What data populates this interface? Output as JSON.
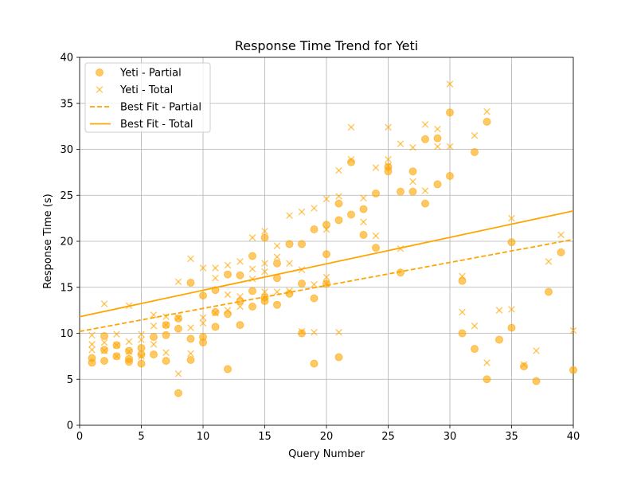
{
  "chart_data": {
    "type": "scatter",
    "title": "Response Time Trend for Yeti",
    "xlabel": "Query Number",
    "ylabel": "Response Time (s)",
    "xlim": [
      0,
      40
    ],
    "ylim": [
      0,
      40
    ],
    "xticks": [
      0,
      5,
      10,
      15,
      20,
      25,
      30,
      35,
      40
    ],
    "yticks": [
      0,
      5,
      10,
      15,
      20,
      25,
      30,
      35,
      40
    ],
    "grid": true,
    "legend_position": "top-left",
    "color": "#ffa500",
    "series": [
      {
        "name": "Yeti - Partial",
        "kind": "scatter",
        "marker": "circle",
        "points": [
          [
            1,
            6.8
          ],
          [
            1,
            7.3
          ],
          [
            2,
            7.0
          ],
          [
            2,
            8.2
          ],
          [
            2,
            9.7
          ],
          [
            3,
            7.5
          ],
          [
            3,
            8.7
          ],
          [
            4,
            6.9
          ],
          [
            4,
            7.2
          ],
          [
            4,
            8.1
          ],
          [
            5,
            6.7
          ],
          [
            5,
            7.7
          ],
          [
            5,
            8.4
          ],
          [
            6,
            7.7
          ],
          [
            6,
            9.6
          ],
          [
            7,
            7.0
          ],
          [
            7,
            9.8
          ],
          [
            7,
            10.9
          ],
          [
            8,
            3.5
          ],
          [
            8,
            10.5
          ],
          [
            8,
            11.6
          ],
          [
            9,
            7.1
          ],
          [
            9,
            9.4
          ],
          [
            9,
            15.5
          ],
          [
            10,
            9.0
          ],
          [
            10,
            9.6
          ],
          [
            10,
            14.1
          ],
          [
            11,
            10.7
          ],
          [
            11,
            12.3
          ],
          [
            11,
            14.7
          ],
          [
            12,
            6.1
          ],
          [
            12,
            12.1
          ],
          [
            12,
            16.4
          ],
          [
            13,
            10.9
          ],
          [
            13,
            13.5
          ],
          [
            13,
            16.3
          ],
          [
            14,
            12.9
          ],
          [
            14,
            14.6
          ],
          [
            14,
            18.4
          ],
          [
            15,
            13.5
          ],
          [
            15,
            13.9
          ],
          [
            15,
            20.4
          ],
          [
            16,
            13.1
          ],
          [
            16,
            16.0
          ],
          [
            16,
            17.6
          ],
          [
            17,
            14.3
          ],
          [
            17,
            19.7
          ],
          [
            18,
            10.0
          ],
          [
            18,
            15.4
          ],
          [
            18,
            19.7
          ],
          [
            19,
            6.7
          ],
          [
            19,
            13.8
          ],
          [
            19,
            21.3
          ],
          [
            20,
            15.4
          ],
          [
            20,
            18.6
          ],
          [
            20,
            21.8
          ],
          [
            21,
            7.4
          ],
          [
            21,
            22.3
          ],
          [
            21,
            24.1
          ],
          [
            22,
            22.9
          ],
          [
            22,
            28.6
          ],
          [
            23,
            20.7
          ],
          [
            23,
            23.5
          ],
          [
            24,
            19.3
          ],
          [
            24,
            25.2
          ],
          [
            25,
            27.6
          ],
          [
            25,
            28.1
          ],
          [
            26,
            16.6
          ],
          [
            26,
            25.4
          ],
          [
            27,
            25.4
          ],
          [
            27,
            27.6
          ],
          [
            28,
            24.1
          ],
          [
            28,
            31.1
          ],
          [
            29,
            26.2
          ],
          [
            29,
            31.2
          ],
          [
            30,
            27.1
          ],
          [
            30,
            34.0
          ],
          [
            31,
            10.0
          ],
          [
            31,
            15.7
          ],
          [
            32,
            8.3
          ],
          [
            32,
            29.7
          ],
          [
            33,
            5.0
          ],
          [
            33,
            33.0
          ],
          [
            34,
            9.3
          ],
          [
            35,
            10.6
          ],
          [
            35,
            19.9
          ],
          [
            36,
            6.4
          ],
          [
            37,
            4.8
          ],
          [
            38,
            14.5
          ],
          [
            39,
            18.8
          ],
          [
            40,
            6.0
          ]
        ]
      },
      {
        "name": "Yeti - Total",
        "kind": "scatter",
        "marker": "x",
        "points": [
          [
            1,
            8.2
          ],
          [
            1,
            8.8
          ],
          [
            1,
            9.8
          ],
          [
            2,
            8.1
          ],
          [
            2,
            9.0
          ],
          [
            2,
            13.2
          ],
          [
            3,
            7.5
          ],
          [
            3,
            8.7
          ],
          [
            3,
            9.9
          ],
          [
            4,
            8.0
          ],
          [
            4,
            9.1
          ],
          [
            4,
            13.0
          ],
          [
            5,
            7.5
          ],
          [
            5,
            9.3
          ],
          [
            5,
            9.9
          ],
          [
            6,
            8.8
          ],
          [
            6,
            10.8
          ],
          [
            6,
            12.0
          ],
          [
            7,
            7.9
          ],
          [
            7,
            10.9
          ],
          [
            7,
            11.8
          ],
          [
            8,
            5.6
          ],
          [
            8,
            11.7
          ],
          [
            8,
            15.6
          ],
          [
            9,
            7.8
          ],
          [
            9,
            10.6
          ],
          [
            9,
            18.1
          ],
          [
            10,
            11.1
          ],
          [
            10,
            11.7
          ],
          [
            10,
            17.1
          ],
          [
            11,
            12.2
          ],
          [
            11,
            16.0
          ],
          [
            11,
            17.1
          ],
          [
            12,
            12.5
          ],
          [
            12,
            14.2
          ],
          [
            12,
            17.4
          ],
          [
            13,
            12.9
          ],
          [
            13,
            14.0
          ],
          [
            13,
            17.8
          ],
          [
            14,
            15.9
          ],
          [
            14,
            17.0
          ],
          [
            14,
            20.4
          ],
          [
            15,
            14.5
          ],
          [
            15,
            16.7
          ],
          [
            15,
            17.6
          ],
          [
            15,
            21.1
          ],
          [
            16,
            14.5
          ],
          [
            16,
            18.3
          ],
          [
            16,
            19.5
          ],
          [
            17,
            14.6
          ],
          [
            17,
            17.6
          ],
          [
            17,
            22.8
          ],
          [
            18,
            10.2
          ],
          [
            18,
            16.9
          ],
          [
            18,
            23.2
          ],
          [
            19,
            10.1
          ],
          [
            19,
            15.3
          ],
          [
            19,
            23.6
          ],
          [
            20,
            15.4
          ],
          [
            20,
            16.1
          ],
          [
            20,
            21.3
          ],
          [
            20,
            24.6
          ],
          [
            21,
            10.1
          ],
          [
            21,
            24.9
          ],
          [
            21,
            27.7
          ],
          [
            22,
            28.9
          ],
          [
            22,
            32.4
          ],
          [
            23,
            22.1
          ],
          [
            23,
            24.7
          ],
          [
            24,
            20.6
          ],
          [
            24,
            28.0
          ],
          [
            25,
            28.2
          ],
          [
            25,
            28.9
          ],
          [
            25,
            32.4
          ],
          [
            26,
            19.2
          ],
          [
            26,
            30.6
          ],
          [
            27,
            26.5
          ],
          [
            27,
            30.2
          ],
          [
            28,
            25.5
          ],
          [
            28,
            32.7
          ],
          [
            29,
            30.3
          ],
          [
            29,
            32.2
          ],
          [
            30,
            30.3
          ],
          [
            30,
            37.1
          ],
          [
            31,
            12.3
          ],
          [
            31,
            16.2
          ],
          [
            32,
            10.8
          ],
          [
            32,
            31.5
          ],
          [
            33,
            6.8
          ],
          [
            33,
            34.1
          ],
          [
            34,
            12.5
          ],
          [
            35,
            12.6
          ],
          [
            35,
            22.5
          ],
          [
            36,
            6.6
          ],
          [
            37,
            8.1
          ],
          [
            38,
            17.8
          ],
          [
            39,
            20.7
          ],
          [
            40,
            10.3
          ]
        ]
      },
      {
        "name": "Best Fit - Partial",
        "kind": "line",
        "style": "dashed",
        "points": [
          [
            0,
            10.2
          ],
          [
            40,
            20.2
          ]
        ]
      },
      {
        "name": "Best Fit - Total",
        "kind": "line",
        "style": "solid",
        "points": [
          [
            0,
            11.8
          ],
          [
            40,
            23.3
          ]
        ]
      }
    ]
  }
}
